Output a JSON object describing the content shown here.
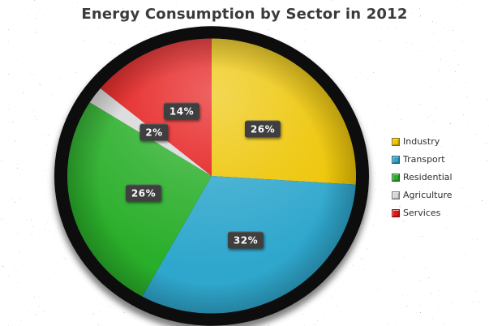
{
  "title": "Energy Consumption by Sector in 2012",
  "chart_data": {
    "type": "pie",
    "title": "Energy Consumption by Sector in 2012",
    "categories": [
      "Industry",
      "Transport",
      "Residential",
      "Agriculture",
      "Services"
    ],
    "values": [
      26,
      32,
      26,
      2,
      14
    ],
    "unit": "percent",
    "labels": [
      "26%",
      "32%",
      "26%",
      "2%",
      "14%"
    ],
    "colors": [
      "#edc400",
      "#2fa7cd",
      "#2aaf2a",
      "#d8d8d8",
      "#e51515"
    ],
    "rim_color": "#0d0d0d",
    "slice_label_background": "#3f3f3f",
    "slice_label_text_color": "#ffffff",
    "start_angle_deg": 0,
    "direction": "clockwise",
    "legend_position": "right",
    "legend_entries": [
      "Industry",
      "Transport",
      "Residential",
      "Agriculture",
      "Services"
    ]
  }
}
